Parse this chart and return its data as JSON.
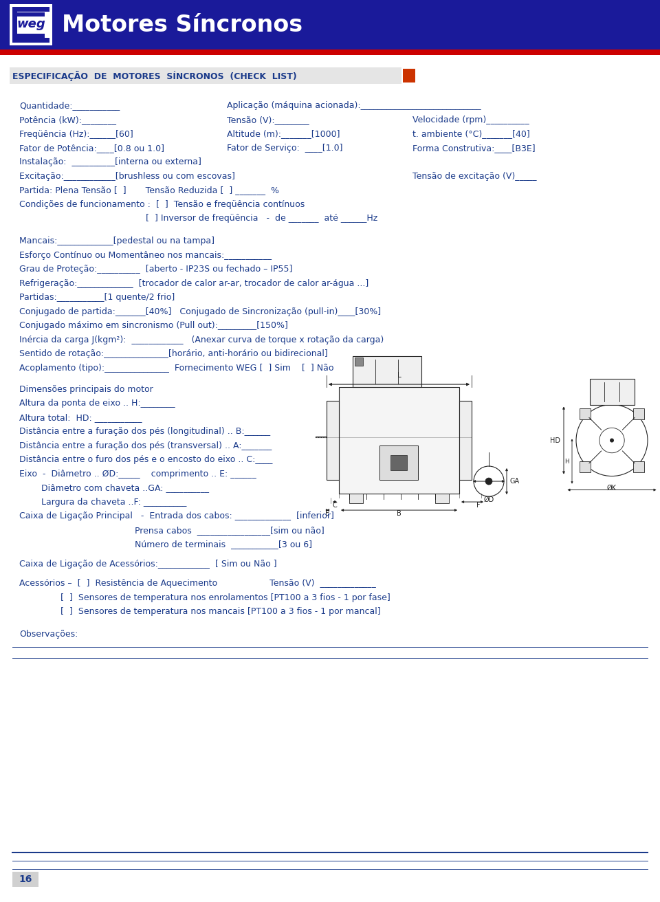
{
  "header_bg": "#1a1a9a",
  "header_text": "Motores Síncronos",
  "red_stripe_color": "#cc0000",
  "section_title": "ESPECIFICAÇÃO  DE  MOTORES  SÍNCRONOS  (CHECK  LIST)",
  "section_box_color": "#cc3300",
  "body_text_color": "#1a3a8a",
  "bg_color": "#ffffff",
  "diagram_line_color": "#222222",
  "footer_line_color": "#1a3a8a",
  "page_number": "16",
  "fs": 9.0,
  "lh": 20.5
}
